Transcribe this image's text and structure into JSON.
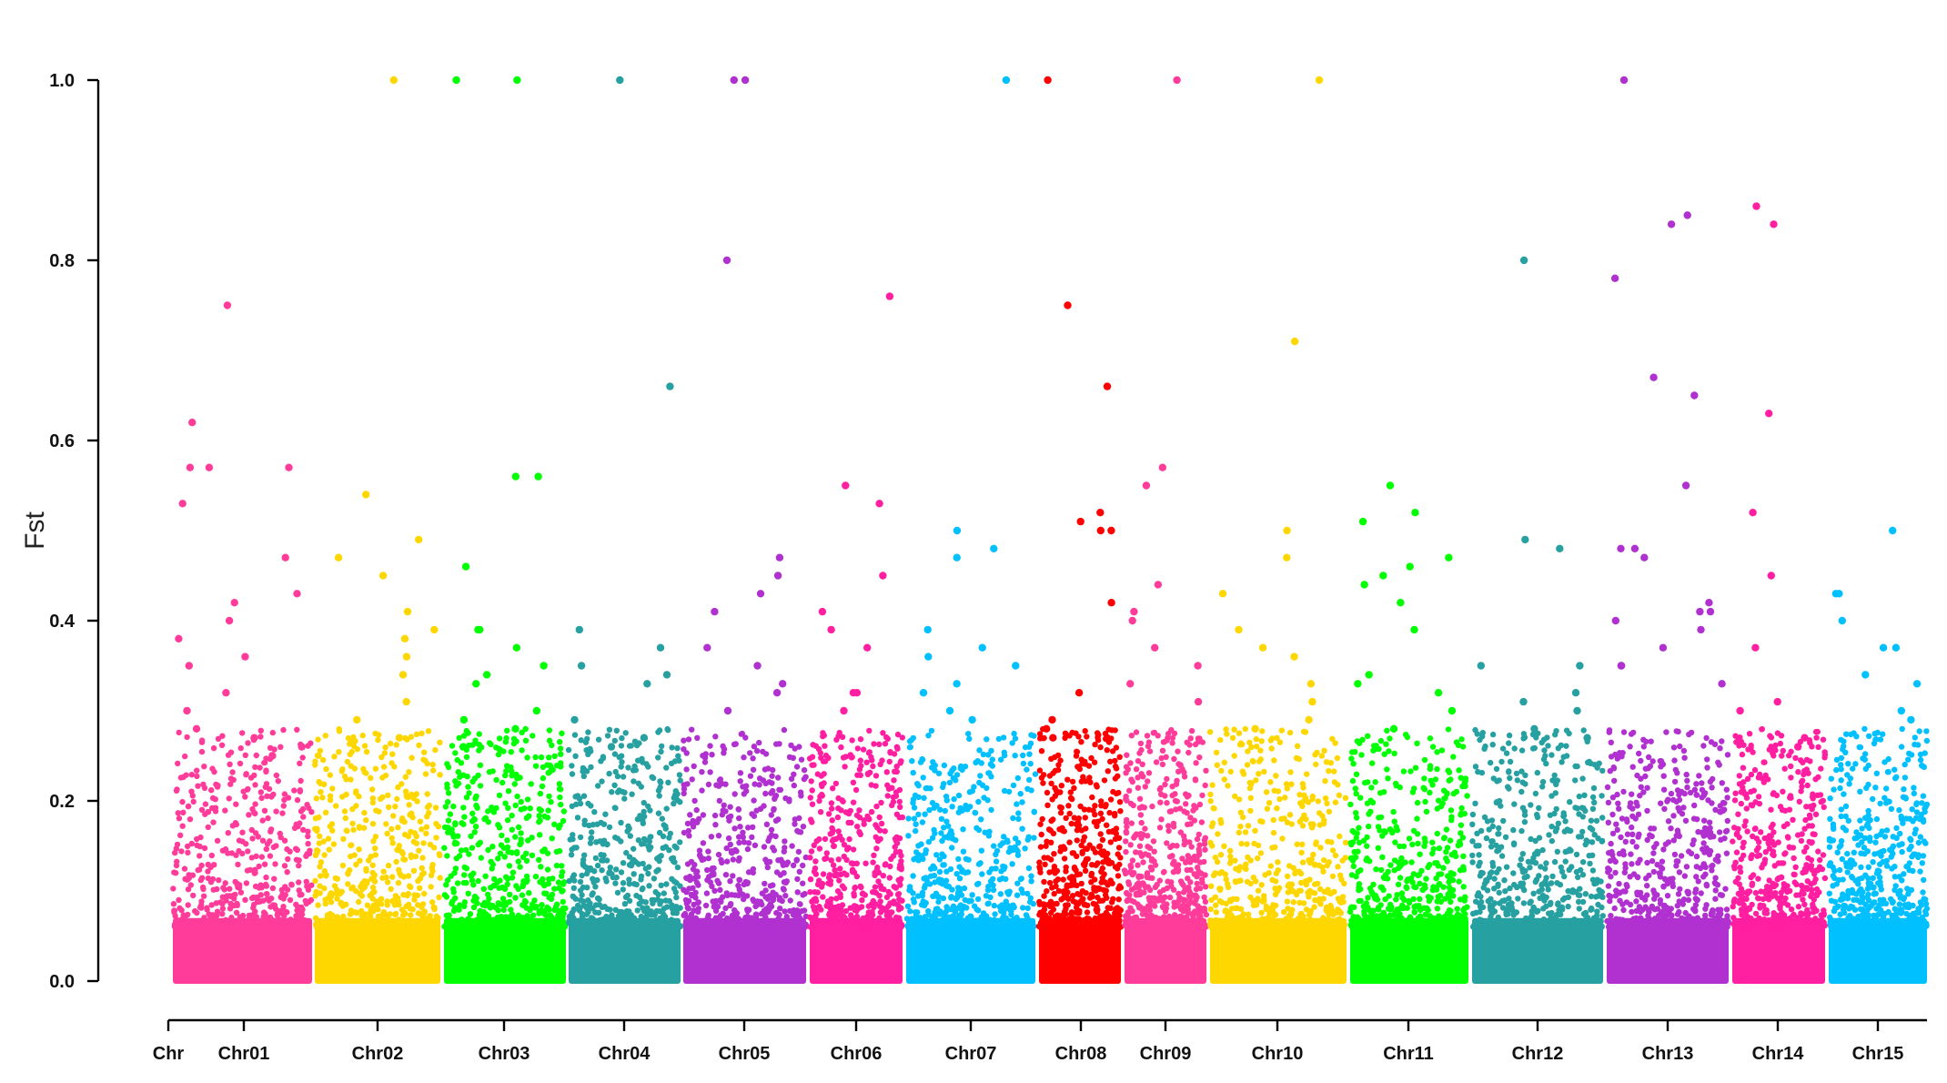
{
  "chart_data": {
    "type": "scatter",
    "title": "",
    "xlabel": "",
    "ylabel": "Fst",
    "ylim": [
      0,
      1.0
    ],
    "yticks": [
      "0.0",
      "0.2",
      "0.4",
      "0.6",
      "0.8",
      "1.0"
    ],
    "xtick_labels": [
      "Chr",
      "Chr01",
      "Chr02",
      "Chr03",
      "Chr04",
      "Chr05",
      "Chr06",
      "Chr07",
      "Chr08",
      "Chr09",
      "Chr10",
      "Chr11",
      "Chr12",
      "Chr13",
      "Chr14",
      "Chr15"
    ],
    "grid": false,
    "legend": "none",
    "series": [
      {
        "chromosome": "Chr01",
        "color": "#ff3c9a",
        "points_above_background": [
          0.62,
          0.57,
          0.57,
          0.47,
          0.75,
          0.57,
          0.53,
          0.43,
          0.42,
          0.4,
          0.38,
          0.36,
          0.35,
          0.32,
          0.3,
          0.28,
          0.27,
          0.26,
          0.25
        ]
      },
      {
        "chromosome": "Chr02",
        "color": "#ffd700",
        "points_above_background": [
          1.0,
          0.54,
          0.49,
          0.47,
          0.45,
          0.41,
          0.39,
          0.38,
          0.36,
          0.34,
          0.31,
          0.29,
          0.27
        ]
      },
      {
        "chromosome": "Chr03",
        "color": "#00ff00",
        "points_above_background": [
          1.0,
          1.0,
          0.56,
          0.56,
          0.46,
          0.39,
          0.39,
          0.37,
          0.35,
          0.34,
          0.33,
          0.3,
          0.29,
          0.28,
          0.26
        ]
      },
      {
        "chromosome": "Chr04",
        "color": "#26a0a0",
        "points_above_background": [
          1.0,
          0.66,
          0.39,
          0.37,
          0.35,
          0.34,
          0.33,
          0.29,
          0.27,
          0.26
        ]
      },
      {
        "chromosome": "Chr05",
        "color": "#b030d0",
        "points_above_background": [
          1.0,
          1.0,
          0.8,
          0.47,
          0.45,
          0.43,
          0.41,
          0.37,
          0.35,
          0.33,
          0.32,
          0.3
        ]
      },
      {
        "chromosome": "Chr06",
        "color": "#ff1fa0",
        "points_above_background": [
          0.76,
          0.55,
          0.53,
          0.45,
          0.41,
          0.39,
          0.37,
          0.32,
          0.32,
          0.3
        ]
      },
      {
        "chromosome": "Chr07",
        "color": "#00c0ff",
        "points_above_background": [
          1.0,
          0.5,
          0.48,
          0.47,
          0.39,
          0.37,
          0.36,
          0.35,
          0.33,
          0.32,
          0.3,
          0.29
        ]
      },
      {
        "chromosome": "Chr08",
        "color": "#ff0000",
        "points_above_background": [
          1.0,
          0.75,
          0.66,
          0.52,
          0.51,
          0.5,
          0.5,
          0.42,
          0.32,
          0.29,
          0.28,
          0.27
        ]
      },
      {
        "chromosome": "Chr09",
        "color": "#ff3c9a",
        "points_above_background": [
          1.0,
          0.57,
          0.55,
          0.44,
          0.41,
          0.4,
          0.37,
          0.35,
          0.33,
          0.31
        ]
      },
      {
        "chromosome": "Chr10",
        "color": "#ffd700",
        "points_above_background": [
          1.0,
          0.71,
          0.5,
          0.47,
          0.43,
          0.39,
          0.37,
          0.36,
          0.33,
          0.31,
          0.29,
          0.28
        ]
      },
      {
        "chromosome": "Chr11",
        "color": "#00ff00",
        "points_above_background": [
          0.55,
          0.52,
          0.51,
          0.47,
          0.46,
          0.45,
          0.44,
          0.42,
          0.39,
          0.34,
          0.33,
          0.32,
          0.3,
          0.28
        ]
      },
      {
        "chromosome": "Chr12",
        "color": "#26a0a0",
        "points_above_background": [
          0.8,
          0.49,
          0.48,
          0.35,
          0.35,
          0.32,
          0.31,
          0.3,
          0.28,
          0.27
        ]
      },
      {
        "chromosome": "Chr13",
        "color": "#b030d0",
        "points_above_background": [
          1.0,
          0.85,
          0.84,
          0.78,
          0.67,
          0.65,
          0.55,
          0.48,
          0.48,
          0.47,
          0.42,
          0.41,
          0.41,
          0.4,
          0.39,
          0.37,
          0.35,
          0.35,
          0.33
        ]
      },
      {
        "chromosome": "Chr14",
        "color": "#ff1fa0",
        "points_above_background": [
          0.86,
          0.84,
          0.63,
          0.52,
          0.45,
          0.37,
          0.31,
          0.3,
          0.27,
          0.26
        ]
      },
      {
        "chromosome": "Chr15",
        "color": "#00c0ff",
        "points_above_background": [
          0.5,
          0.43,
          0.43,
          0.4,
          0.37,
          0.37,
          0.34,
          0.33,
          0.3,
          0.29
        ]
      }
    ],
    "background_level": 0.13
  }
}
